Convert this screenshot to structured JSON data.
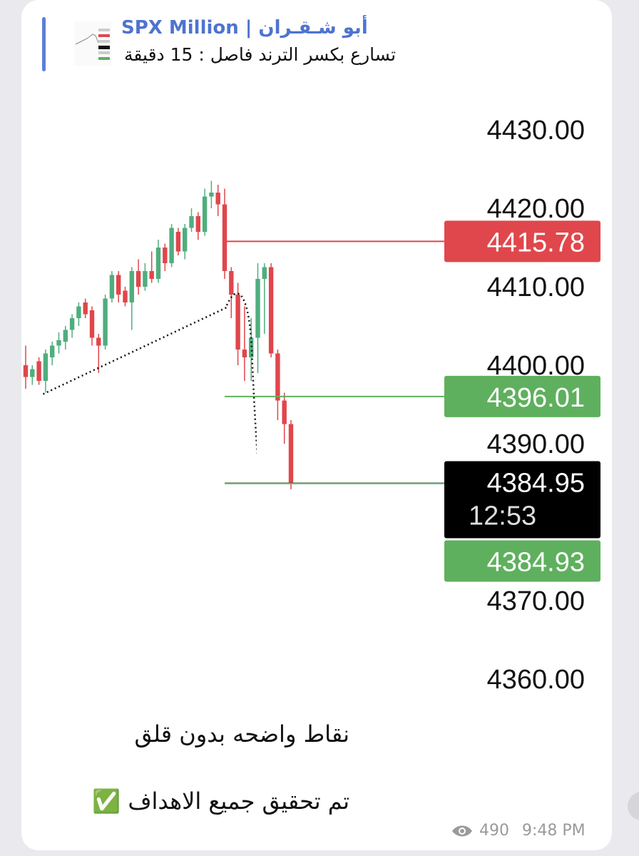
{
  "header": {
    "name": "SPX Million | أبو شـقـران",
    "text": "تسارع بكسر الترند فاصل : 15 دقيقة"
  },
  "chart_data": {
    "type": "candlestick",
    "ylim": [
      4350,
      4436
    ],
    "yticks": [
      {
        "value": 4430,
        "label": "4430.00"
      },
      {
        "value": 4420,
        "label": "4420.00"
      },
      {
        "value": 4410,
        "label": "4410.00"
      },
      {
        "value": 4400,
        "label": "4400.00"
      },
      {
        "value": 4390,
        "label": "4390.00"
      },
      {
        "value": 4370,
        "label": "4370.00"
      },
      {
        "value": 4360,
        "label": "4360.00"
      }
    ],
    "up_color": "#4fae7e",
    "down_color": "#e0464b",
    "candles": {
      "open": [
        4400,
        4398.5,
        4400.5,
        4398,
        4401,
        4402.5,
        4403,
        4404.5,
        4406,
        4408,
        4407,
        4403.5,
        4402.5,
        4408.5,
        4411.5,
        4409.5,
        4408,
        4412,
        4410,
        4412,
        4411,
        4415,
        4413,
        4417,
        4414.5,
        4417.5,
        4419,
        4417,
        4421.5,
        4422,
        4420.5,
        4412,
        4409,
        4402,
        4401,
        4403.5,
        4411,
        4412.5,
        4401.5,
        4395.5,
        4392.5
      ],
      "high": [
        4402.5,
        4400,
        4401,
        4402,
        4403,
        4404.2,
        4405,
        4406.5,
        4408,
        4408.5,
        4407.5,
        4404,
        4409,
        4412,
        4412,
        4410,
        4412.5,
        4413.5,
        4413,
        4414.5,
        4416,
        4415.5,
        4418,
        4417.5,
        4418,
        4420,
        4419.5,
        4422.5,
        4423.5,
        4423,
        4422.5,
        4412.5,
        4410.5,
        4407.5,
        4406,
        4413,
        4413,
        4413,
        4402,
        4396.5,
        4393
      ],
      "low": [
        4397,
        4397.5,
        4397.5,
        4396.5,
        4400,
        4401.5,
        4402,
        4403.5,
        4405,
        4406,
        4402.5,
        4399,
        4402,
        4408,
        4408,
        4407.5,
        4404.5,
        4409,
        4409.5,
        4410.5,
        4410.5,
        4412,
        4412.5,
        4414,
        4413.5,
        4417,
        4416,
        4416.5,
        4420,
        4419,
        4411,
        4406,
        4400,
        4398,
        4398,
        4399,
        4404,
        4401,
        4393,
        4390,
        4384.2
      ],
      "close": [
        4398.5,
        4399.5,
        4398,
        4401.5,
        4402.5,
        4403.2,
        4404.5,
        4406,
        4407.5,
        4406.5,
        4403.5,
        4402.5,
        4408.5,
        4411.5,
        4409,
        4408,
        4412,
        4410,
        4412,
        4411,
        4415,
        4413,
        4417.5,
        4414.5,
        4417.5,
        4419,
        4417,
        4421.5,
        4422,
        4420.5,
        4412,
        4409,
        4402,
        4401,
        4403.5,
        4411,
        4412.5,
        4401.5,
        4395.5,
        4392.5,
        4385
      ]
    },
    "price_tags": [
      {
        "value": 4415.78,
        "label": "4415.78",
        "color": "#e0474c"
      },
      {
        "value": 4396.01,
        "label": "4396.01",
        "color": "#5fb05e"
      },
      {
        "value": 4384.95,
        "label": "4384.95",
        "color": "#000000",
        "countdown": "12:53"
      },
      {
        "value": 4384.93,
        "label": "4384.93",
        "color": "#5fb05e"
      }
    ]
  },
  "message": [
    "نقاط واضحه بدون قلق",
    "تم تحقيق جميع الاهداف ✅"
  ],
  "footer": {
    "views": 490,
    "time": "9:48 PM"
  }
}
